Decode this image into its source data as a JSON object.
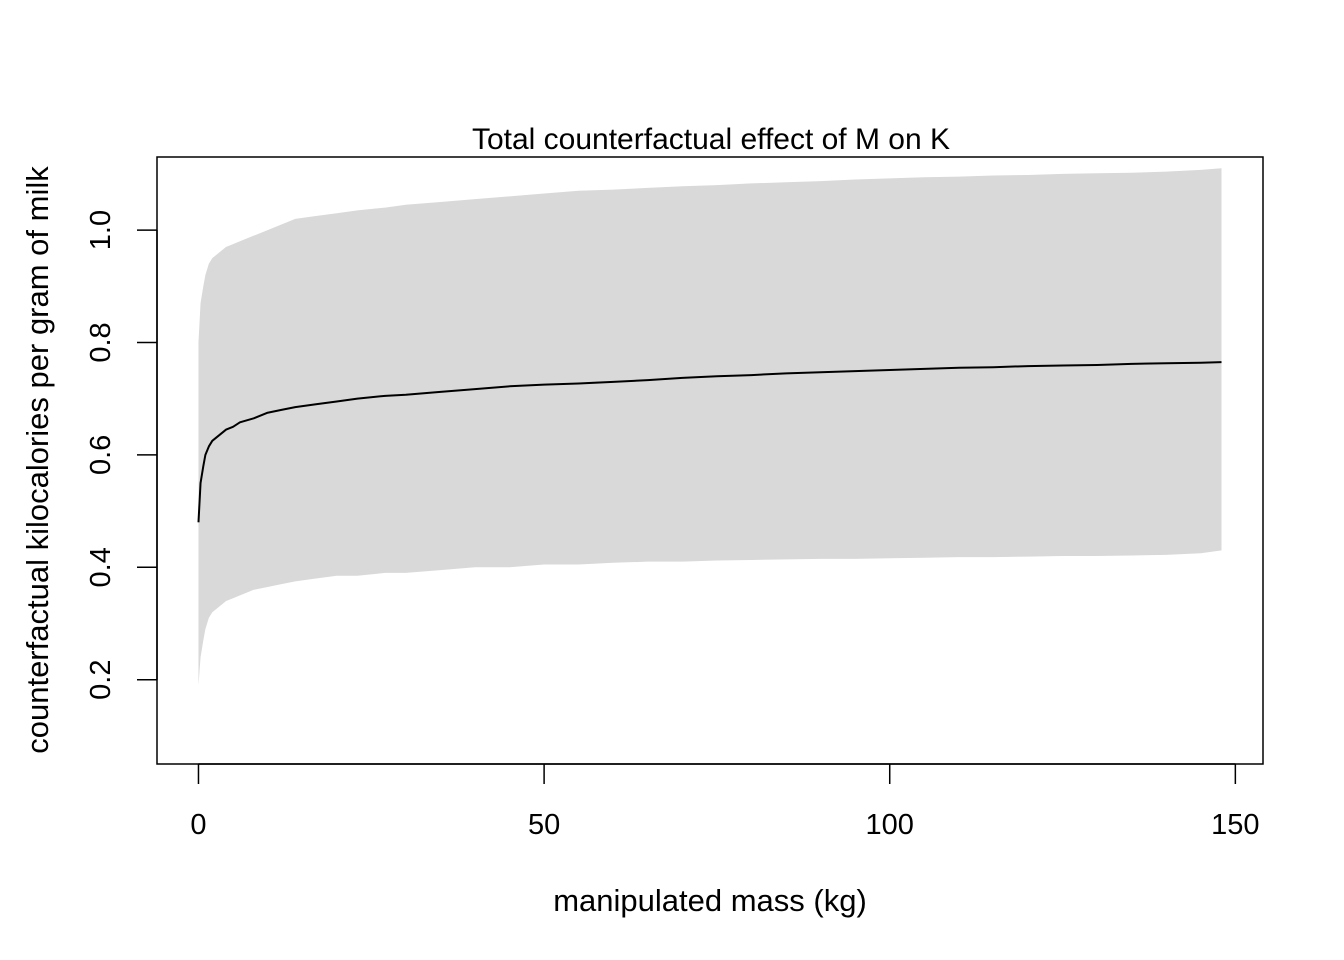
{
  "chart_data": {
    "type": "line",
    "title": "Total counterfactual effect of M on K",
    "xlabel": "manipulated mass (kg)",
    "ylabel": "counterfactual kilocalories per gram of milk",
    "xlim": [
      -6,
      154
    ],
    "ylim": [
      0.05,
      1.13
    ],
    "x_ticks": [
      0,
      50,
      100,
      150
    ],
    "y_ticks": [
      0.2,
      0.4,
      0.6,
      0.8,
      1.0
    ],
    "x_tick_labels": [
      "0",
      "50",
      "100",
      "150"
    ],
    "y_tick_labels": [
      "0.2",
      "0.4",
      "0.6",
      "0.8",
      "1.0"
    ],
    "grid": false,
    "series": [
      {
        "role": "mean",
        "color": "#000000",
        "x": [
          0,
          0.3,
          0.7,
          1,
          1.5,
          2,
          3,
          4,
          5,
          6,
          8,
          10,
          12,
          14,
          17,
          20,
          23,
          27,
          30,
          35,
          40,
          45,
          50,
          55,
          60,
          65,
          70,
          75,
          80,
          85,
          90,
          95,
          100,
          105,
          110,
          115,
          120,
          125,
          130,
          135,
          140,
          145,
          148
        ],
        "y": [
          0.48,
          0.55,
          0.58,
          0.6,
          0.615,
          0.625,
          0.635,
          0.645,
          0.65,
          0.658,
          0.665,
          0.675,
          0.68,
          0.685,
          0.69,
          0.695,
          0.7,
          0.705,
          0.707,
          0.712,
          0.717,
          0.722,
          0.725,
          0.727,
          0.73,
          0.733,
          0.737,
          0.74,
          0.742,
          0.745,
          0.747,
          0.749,
          0.751,
          0.753,
          0.755,
          0.756,
          0.758,
          0.759,
          0.76,
          0.762,
          0.763,
          0.764,
          0.765
        ]
      },
      {
        "role": "interval",
        "color": "#d9d9d9",
        "x": [
          0,
          0.3,
          0.7,
          1,
          1.5,
          2,
          3,
          4,
          5,
          6,
          8,
          10,
          12,
          14,
          17,
          20,
          23,
          27,
          30,
          35,
          40,
          45,
          50,
          55,
          60,
          65,
          70,
          75,
          80,
          85,
          90,
          95,
          100,
          105,
          110,
          115,
          120,
          125,
          130,
          135,
          140,
          145,
          148
        ],
        "lower": [
          0.19,
          0.24,
          0.27,
          0.29,
          0.31,
          0.32,
          0.33,
          0.34,
          0.345,
          0.35,
          0.36,
          0.365,
          0.37,
          0.375,
          0.38,
          0.385,
          0.385,
          0.39,
          0.39,
          0.395,
          0.4,
          0.4,
          0.405,
          0.405,
          0.408,
          0.41,
          0.41,
          0.412,
          0.413,
          0.414,
          0.415,
          0.415,
          0.416,
          0.417,
          0.418,
          0.418,
          0.419,
          0.42,
          0.42,
          0.421,
          0.422,
          0.425,
          0.43
        ],
        "upper": [
          0.8,
          0.87,
          0.9,
          0.92,
          0.94,
          0.95,
          0.96,
          0.97,
          0.975,
          0.98,
          0.99,
          1.0,
          1.01,
          1.02,
          1.025,
          1.03,
          1.035,
          1.04,
          1.045,
          1.05,
          1.055,
          1.06,
          1.065,
          1.07,
          1.072,
          1.075,
          1.078,
          1.08,
          1.083,
          1.085,
          1.087,
          1.09,
          1.092,
          1.094,
          1.095,
          1.097,
          1.098,
          1.1,
          1.101,
          1.102,
          1.104,
          1.107,
          1.11
        ]
      }
    ]
  }
}
